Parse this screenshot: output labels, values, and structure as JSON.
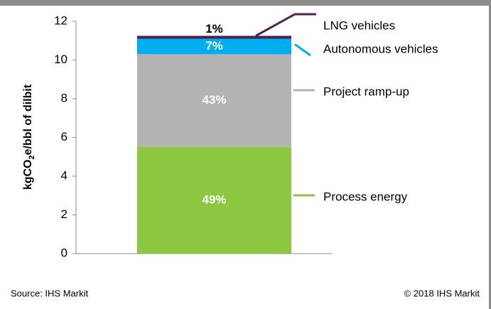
{
  "chart_data": {
    "type": "stacked_bar",
    "ylabel": "kgCO",
    "ylabel_sub": "2",
    "ylabel_rest": "e/bbl of dilbit",
    "categories": [
      null
    ],
    "series": [
      {
        "name": "Process energy",
        "color": "#8dc63f",
        "values": [
          5.5
        ],
        "value_labels": [
          "49%"
        ]
      },
      {
        "name": "Project ramp-up",
        "color": "#b3b3b3",
        "values": [
          4.8
        ],
        "value_labels": [
          "43%"
        ]
      },
      {
        "name": "Autonomous vehicles",
        "color": "#00aeef",
        "values": [
          0.8
        ],
        "value_labels": [
          "7%"
        ]
      },
      {
        "name": "LNG vehicles",
        "color": "#4b2150",
        "values": [
          0.15
        ],
        "value_labels": [
          "1%"
        ]
      }
    ],
    "ylim": [
      0,
      12
    ],
    "yticks": [
      0,
      2,
      4,
      6,
      8,
      10,
      12
    ],
    "source": "Source: IHS Markit",
    "copyright": "© 2018 IHS Markit"
  }
}
